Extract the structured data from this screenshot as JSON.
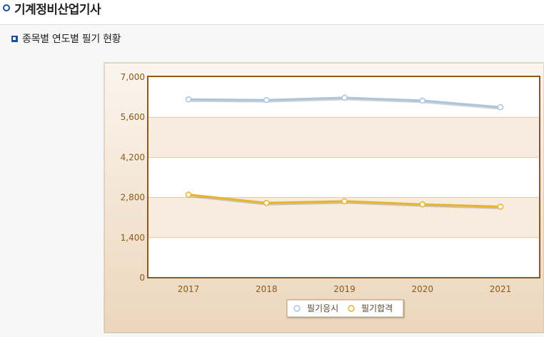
{
  "header": {
    "title": "기계정비산업기사",
    "bullet_icon": "circle-bullet-icon"
  },
  "section": {
    "title": "종목별 연도별 필기 현황",
    "bullet_icon": "square-bullet-icon"
  },
  "colors": {
    "plot_border": "#8b5a14",
    "band": "#f8ebe0",
    "series_apply": "#a9c5e2",
    "series_pass": "#e8b52a",
    "axis_text": "#8a5a1a"
  },
  "chart_data": {
    "type": "line",
    "categories": [
      "2017",
      "2018",
      "2019",
      "2020",
      "2021"
    ],
    "series": [
      {
        "name": "필기응시",
        "values": [
          6220,
          6200,
          6280,
          6180,
          5950
        ]
      },
      {
        "name": "필기합격",
        "values": [
          2900,
          2610,
          2670,
          2560,
          2480
        ]
      }
    ],
    "ylim": [
      0,
      7000
    ],
    "yticks": [
      "0",
      "1,400",
      "2,800",
      "4,200",
      "5,600",
      "7,000"
    ],
    "grid": true,
    "legend": "bottom-center"
  }
}
